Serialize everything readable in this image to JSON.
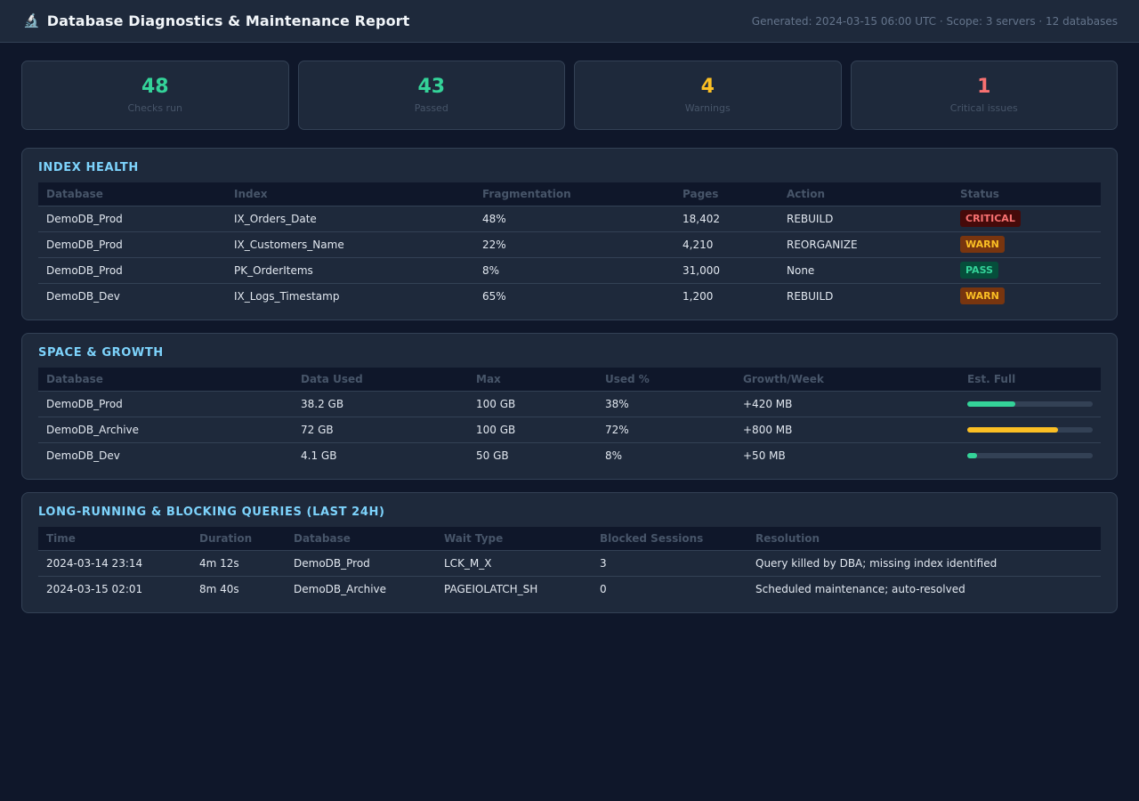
{
  "header": {
    "icon": "microscope-icon",
    "title": "Database Diagnostics & Maintenance Report",
    "meta": "Generated: 2024-03-15 06:00 UTC · Scope: 3 servers · 12 databases"
  },
  "stats": [
    {
      "value": "48",
      "label": "Checks run",
      "color": "#34d399"
    },
    {
      "value": "43",
      "label": "Passed",
      "color": "#34d399"
    },
    {
      "value": "4",
      "label": "Warnings",
      "color": "#fbbf24"
    },
    {
      "value": "1",
      "label": "Critical issues",
      "color": "#f87171"
    }
  ],
  "index_health": {
    "title": "INDEX HEALTH",
    "columns": [
      "Database",
      "Index",
      "Fragmentation",
      "Pages",
      "Action",
      "Status"
    ],
    "rows": [
      {
        "database": "DemoDB_Prod",
        "index": "IX_Orders_Date",
        "fragmentation": "48%",
        "pages": "18,402",
        "action": "REBUILD",
        "status": "CRITICAL",
        "status_kind": "critical"
      },
      {
        "database": "DemoDB_Prod",
        "index": "IX_Customers_Name",
        "fragmentation": "22%",
        "pages": "4,210",
        "action": "REORGANIZE",
        "status": "WARN",
        "status_kind": "warn"
      },
      {
        "database": "DemoDB_Prod",
        "index": "PK_OrderItems",
        "fragmentation": "8%",
        "pages": "31,000",
        "action": "None",
        "status": "PASS",
        "status_kind": "pass"
      },
      {
        "database": "DemoDB_Dev",
        "index": "IX_Logs_Timestamp",
        "fragmentation": "65%",
        "pages": "1,200",
        "action": "REBUILD",
        "status": "WARN",
        "status_kind": "warn"
      }
    ]
  },
  "space_growth": {
    "title": "SPACE & GROWTH",
    "columns": [
      "Database",
      "Data Used",
      "Max",
      "Used %",
      "Growth/Week",
      "Est. Full"
    ],
    "rows": [
      {
        "database": "DemoDB_Prod",
        "data_used": "38.2 GB",
        "max": "100 GB",
        "used_pct": "38%",
        "growth": "+420 MB",
        "fill": 0.38,
        "color": "#34d399"
      },
      {
        "database": "DemoDB_Archive",
        "data_used": "72 GB",
        "max": "100 GB",
        "used_pct": "72%",
        "growth": "+800 MB",
        "fill": 0.72,
        "color": "#fbbf24"
      },
      {
        "database": "DemoDB_Dev",
        "data_used": "4.1 GB",
        "max": "50 GB",
        "used_pct": "8%",
        "growth": "+50 MB",
        "fill": 0.08,
        "color": "#34d399"
      }
    ]
  },
  "queries": {
    "title": "LONG-RUNNING & BLOCKING QUERIES (LAST 24H)",
    "columns": [
      "Time",
      "Duration",
      "Database",
      "Wait Type",
      "Blocked Sessions",
      "Resolution"
    ],
    "rows": [
      {
        "time": "2024-03-14 23:14",
        "duration": "4m 12s",
        "database": "DemoDB_Prod",
        "wait_type": "LCK_M_X",
        "blocked": "3",
        "resolution": "Query killed by DBA; missing index identified"
      },
      {
        "time": "2024-03-15 02:01",
        "duration": "8m 40s",
        "database": "DemoDB_Archive",
        "wait_type": "PAGEIOLATCH_SH",
        "blocked": "0",
        "resolution": "Scheduled maintenance; auto-resolved"
      }
    ]
  }
}
